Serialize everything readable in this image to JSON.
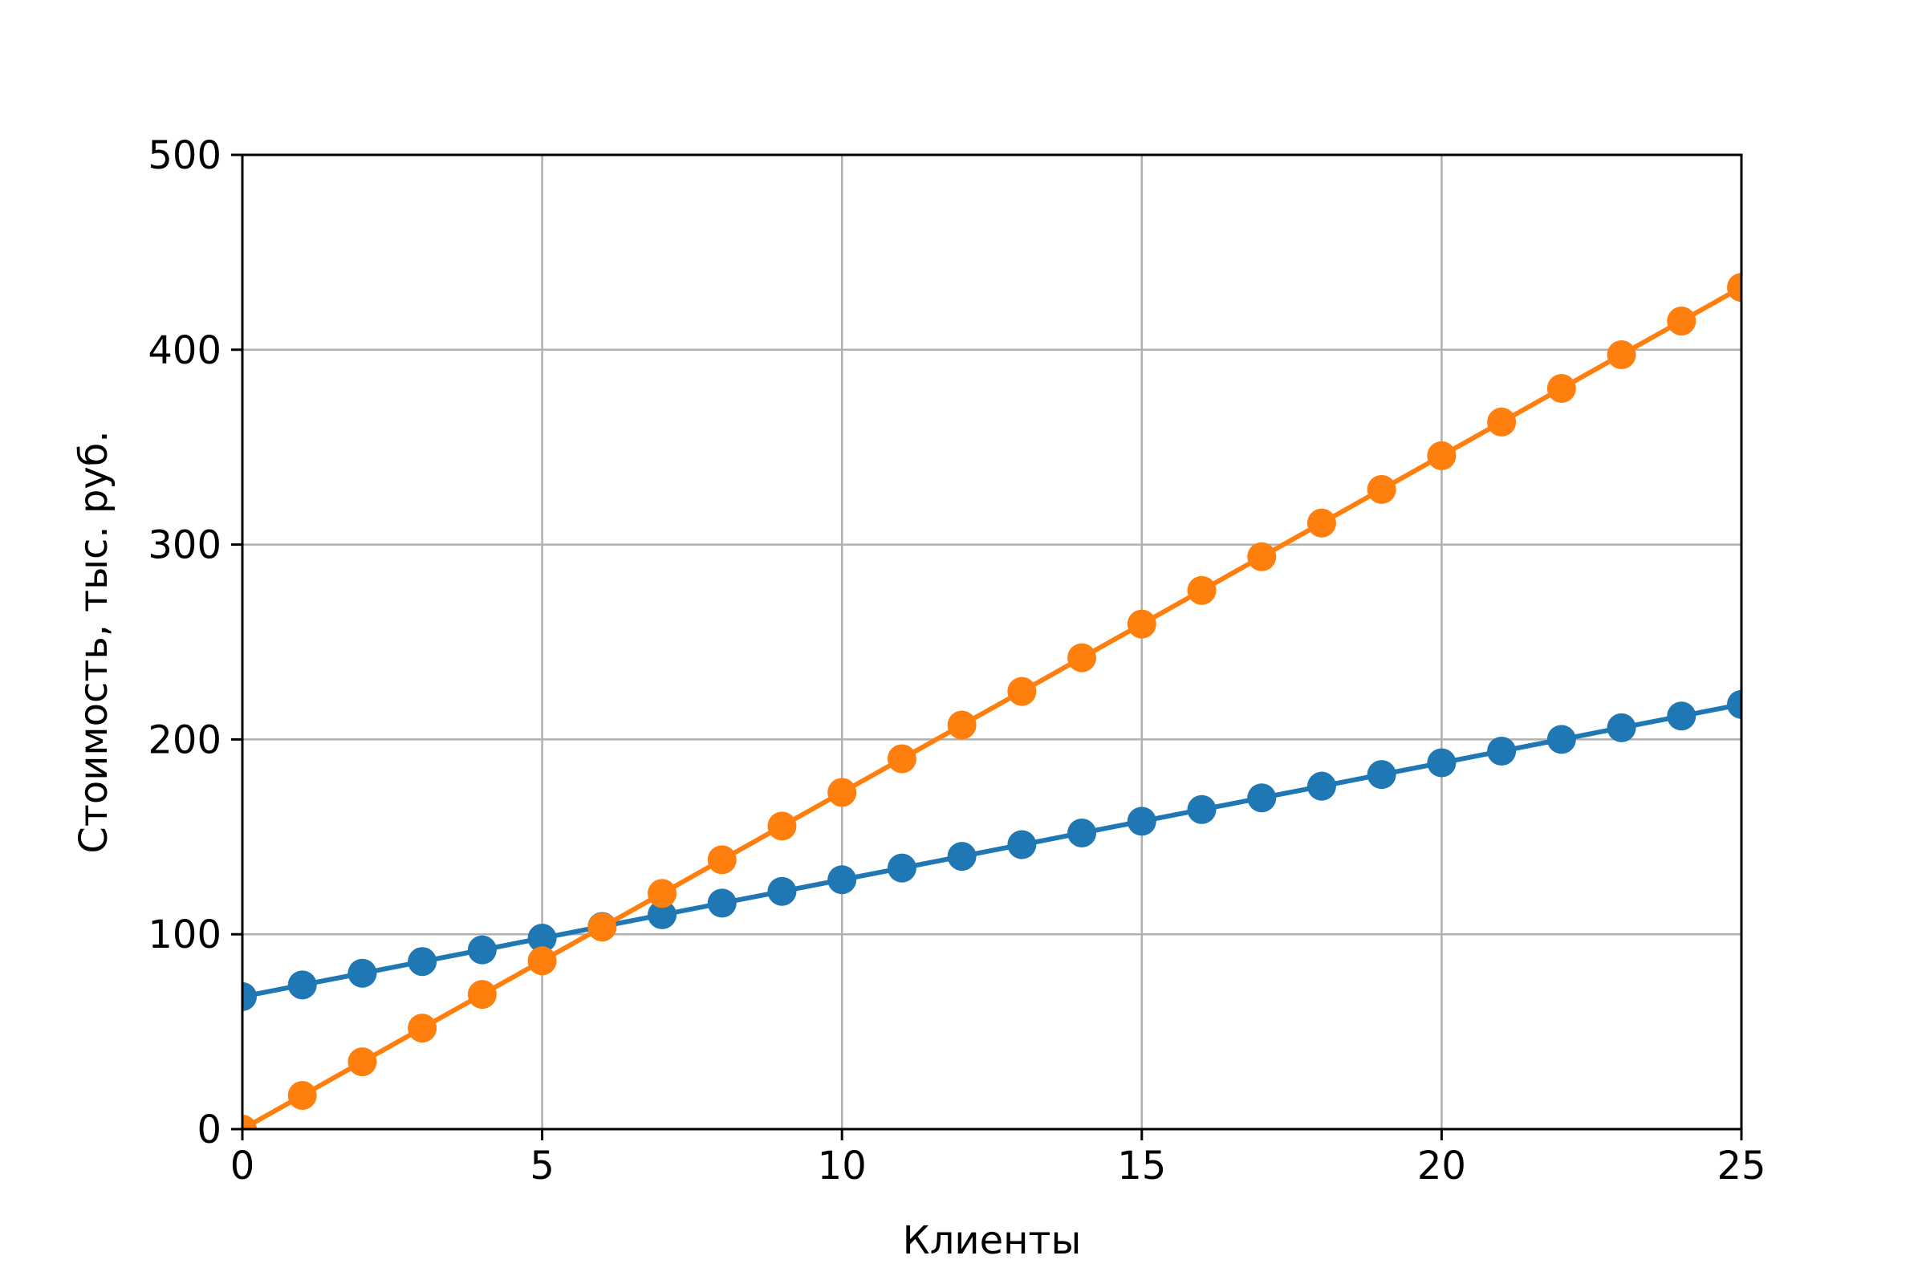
{
  "chart_data": {
    "type": "line",
    "title": "",
    "xlabel": "Клиенты",
    "ylabel": "Стоимость, тыс. руб.",
    "xlim": [
      0,
      25
    ],
    "ylim": [
      0,
      500
    ],
    "xticks": [
      "0",
      "5",
      "10",
      "15",
      "20",
      "25"
    ],
    "yticks": [
      "0",
      "100",
      "200",
      "300",
      "400",
      "500"
    ],
    "grid": true,
    "x": [
      0,
      1,
      2,
      3,
      4,
      5,
      6,
      7,
      8,
      9,
      10,
      11,
      12,
      13,
      14,
      15,
      16,
      17,
      18,
      19,
      20,
      21,
      22,
      23,
      24,
      25
    ],
    "series": [
      {
        "color": "#1f77b4",
        "values": [
          68,
          74,
          80,
          86,
          92,
          98,
          104,
          110,
          116,
          122,
          128,
          134,
          140,
          146,
          152,
          158,
          164,
          170,
          176,
          182,
          188,
          194,
          200,
          206,
          212,
          218
        ]
      },
      {
        "color": "#ff7f0e",
        "values": [
          0,
          17.28,
          34.56,
          51.84,
          69.12,
          86.4,
          103.68,
          120.96,
          138.24,
          155.52,
          172.8,
          190.08,
          207.36,
          224.64,
          241.92,
          259.2,
          276.48,
          293.76,
          311.04,
          328.32,
          345.6,
          362.88,
          380.16,
          397.44,
          414.72,
          432
        ]
      }
    ]
  }
}
